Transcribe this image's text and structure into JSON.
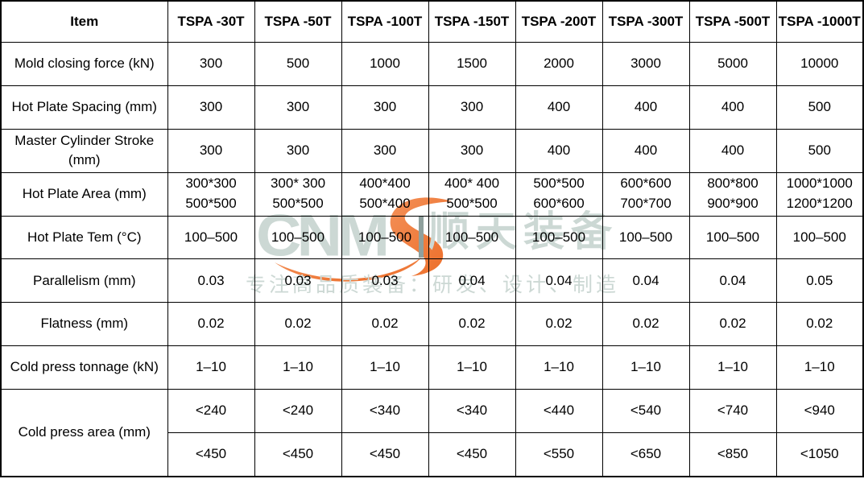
{
  "watermark": {
    "logo_text": "CNM",
    "logo_s": "S-swoosh",
    "brand_cn": "顺天装备",
    "tagline": "专注高品质装备：研发、设计、制造",
    "accent_orange": "#ee7732",
    "mark_color": "#ccd8d4",
    "divider_color": "#8fa09d"
  },
  "table": {
    "columns": [
      "Item",
      "TSPA -30T",
      "TSPA -50T",
      "TSPA -100T",
      "TSPA -150T",
      "TSPA -200T",
      "TSPA -300T",
      "TSPA -500T",
      "TSPA -1000T"
    ],
    "rows": [
      {
        "label": "Mold closing force (kN)",
        "cells": [
          "300",
          "500",
          "1000",
          "1500",
          "2000",
          "3000",
          "5000",
          "10000"
        ]
      },
      {
        "label": "Hot Plate Spacing (mm)",
        "cells": [
          "300",
          "300",
          "300",
          "300",
          "400",
          "400",
          "400",
          "500"
        ]
      },
      {
        "label": "Master Cylinder Stroke (mm)",
        "cells": [
          "300",
          "300",
          "300",
          "300",
          "400",
          "400",
          "400",
          "500"
        ]
      },
      {
        "label": "Hot Plate Area (mm)",
        "cells": [
          "300*300\n500*500",
          "300* 300\n500*500",
          "400*400\n500*400",
          "400* 400\n500*500",
          "500*500\n600*600",
          "600*600\n700*700",
          "800*800\n900*900",
          "1000*1000\n1200*1200"
        ]
      },
      {
        "label": "Hot Plate Tem (°C)",
        "cells": [
          "100–500",
          "100–500",
          "100–500",
          "100–500",
          "100–500",
          "100–500",
          "100–500",
          "100–500"
        ]
      },
      {
        "label": "Parallelism (mm)",
        "cells": [
          "0.03",
          "0.03",
          "0.03",
          "0.04",
          "0.04",
          "0.04",
          "0.04",
          "0.05"
        ]
      },
      {
        "label": "Flatness (mm)",
        "cells": [
          "0.02",
          "0.02",
          "0.02",
          "0.02",
          "0.02",
          "0.02",
          "0.02",
          "0.02"
        ]
      },
      {
        "label": "Cold press tonnage (kN)",
        "cells": [
          "1–10",
          "1–10",
          "1–10",
          "1–10",
          "1–10",
          "1–10",
          "1–10",
          "1–10"
        ]
      },
      {
        "label": "Cold press area (mm)",
        "cells": [
          "<240",
          "<240",
          "<340",
          "<340",
          "<440",
          "<540",
          "<740",
          "<940"
        ],
        "cells2": [
          "<450",
          "<450",
          "<450",
          "<450",
          "<550",
          "<650",
          "<850",
          "<1050"
        ]
      }
    ]
  }
}
